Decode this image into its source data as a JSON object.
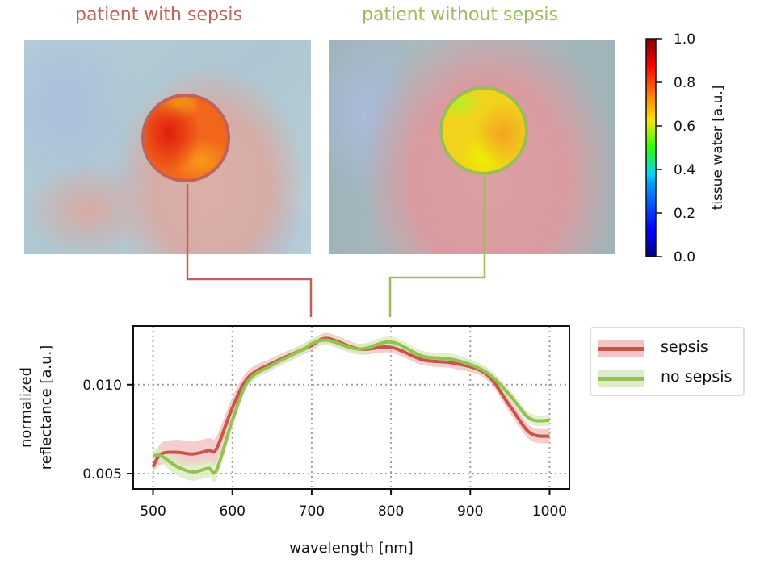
{
  "panels": [
    {
      "title": "patient with sepsis",
      "color": "#c0625a"
    },
    {
      "title": "patient without sepsis",
      "color": "#9cbc5c"
    }
  ],
  "colorbar": {
    "label": "tissue water [a.u.]",
    "colormap": "jet",
    "range": [
      0.0,
      1.0
    ],
    "ticks": [
      "0.0",
      "0.2",
      "0.4",
      "0.6",
      "0.8",
      "1.0"
    ]
  },
  "chart_data": {
    "type": "line",
    "title": "",
    "xlabel": "wavelength [nm]",
    "ylabel_lines": [
      "normalized",
      "reflectance [a.u.]"
    ],
    "xlim": [
      475,
      1025
    ],
    "ylim": [
      0.00414,
      0.0133
    ],
    "xticks": [
      500,
      600,
      700,
      800,
      900,
      1000
    ],
    "xtick_labels": [
      "500",
      "600",
      "700",
      "800",
      "900",
      "1000"
    ],
    "yticks": [
      0.005,
      0.01
    ],
    "ytick_labels": [
      "0.005",
      "0.010"
    ],
    "grid": true,
    "legend_position": "outside-right-top",
    "x": [
      500,
      510,
      530,
      550,
      570,
      580,
      600,
      620,
      650,
      690,
      700,
      720,
      760,
      800,
      840,
      880,
      920,
      950,
      975,
      1000
    ],
    "series": [
      {
        "name": "sepsis",
        "color": "#c9554a",
        "band_color": "#f0bcbc",
        "values": [
          0.0054,
          0.0061,
          0.0062,
          0.0061,
          0.0063,
          0.0064,
          0.0087,
          0.0104,
          0.0112,
          0.012,
          0.0122,
          0.0126,
          0.012,
          0.0121,
          0.0114,
          0.0112,
          0.0106,
          0.0088,
          0.0073,
          0.0071
        ],
        "band_halfwidth": [
          0.0003,
          0.0006,
          0.0007,
          0.0007,
          0.0007,
          0.0007,
          0.0006,
          0.0004,
          0.0003,
          0.0003,
          0.0003,
          0.0003,
          0.0003,
          0.0003,
          0.0003,
          0.0003,
          0.0003,
          0.0004,
          0.0004,
          0.0004
        ]
      },
      {
        "name": "no sepsis",
        "color": "#93c152",
        "band_color": "#d9ebbf",
        "values": [
          0.006,
          0.006,
          0.0054,
          0.0051,
          0.0053,
          0.0052,
          0.008,
          0.0102,
          0.0111,
          0.012,
          0.0123,
          0.0125,
          0.012,
          0.0124,
          0.0116,
          0.0114,
          0.0107,
          0.0094,
          0.0081,
          0.008
        ],
        "band_halfwidth": [
          0.0003,
          0.0004,
          0.0005,
          0.0005,
          0.0005,
          0.0005,
          0.0004,
          0.0003,
          0.0003,
          0.0003,
          0.0003,
          0.0003,
          0.0003,
          0.0003,
          0.0003,
          0.0003,
          0.0003,
          0.0003,
          0.0003,
          0.0003
        ]
      }
    ]
  },
  "legend": {
    "items": [
      {
        "label": "sepsis",
        "line_color": "#c9554a",
        "band_color": "#f2c6c6"
      },
      {
        "label": "no sepsis",
        "line_color": "#93c152",
        "band_color": "#deeccb"
      }
    ]
  }
}
